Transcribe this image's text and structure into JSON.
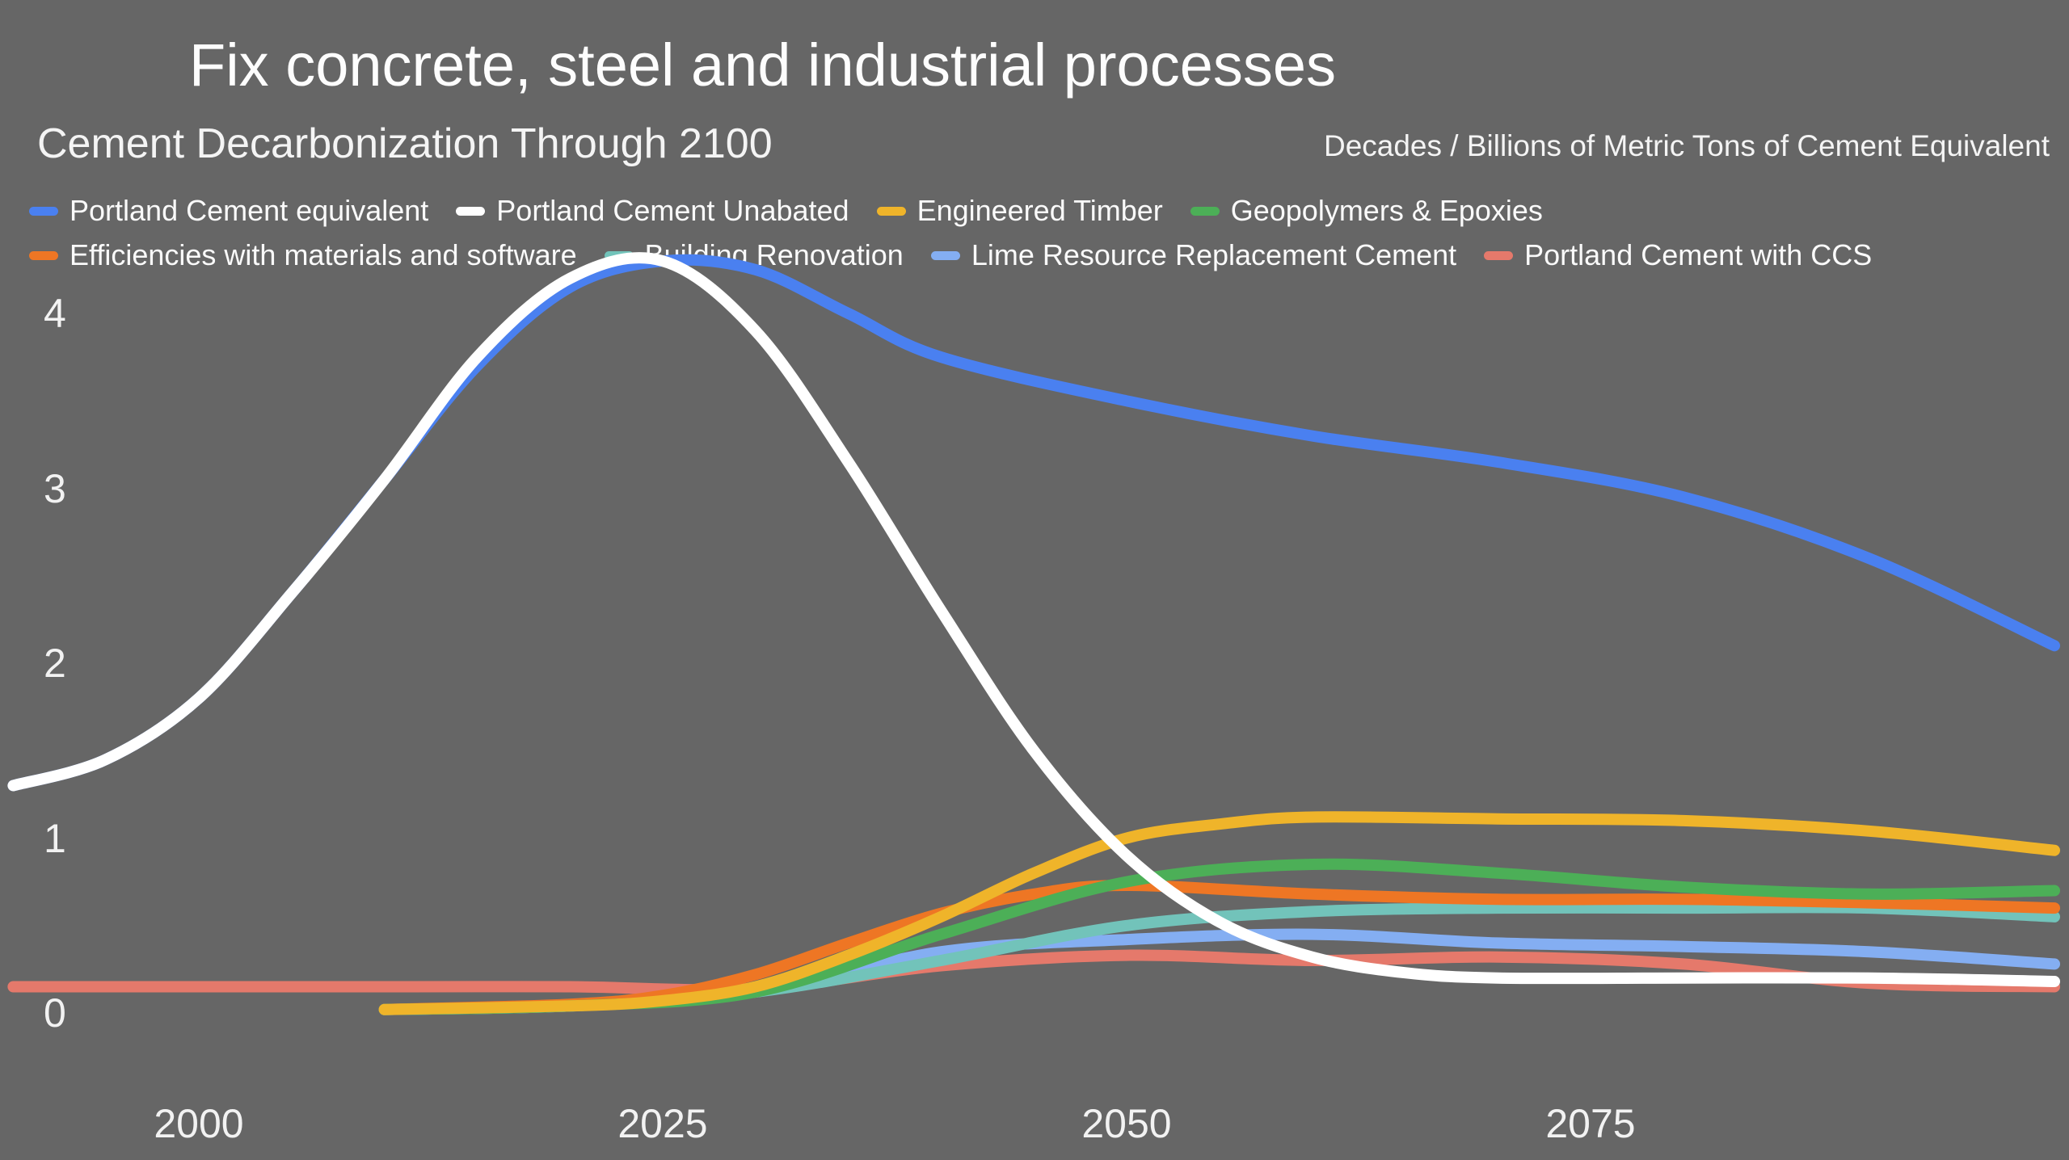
{
  "header": {
    "title": "Fix concrete, steel and industrial processes",
    "subtitle": "Cement Decarbonization Through 2100",
    "units_label": "Decades / Billions of Metric Tons of Cement Equivalent"
  },
  "colors": {
    "background": "#666666",
    "text": "#ffffff"
  },
  "chart_data": {
    "type": "line",
    "title": "Cement Decarbonization Through 2100",
    "xlabel": "Decades",
    "ylabel": "Billions of Metric Tons of Cement Equivalent",
    "x_ticks": [
      2000,
      2025,
      2050,
      2075
    ],
    "y_ticks": [
      0,
      1,
      2,
      3,
      4
    ],
    "xlim": [
      1990,
      2101
    ],
    "ylim": [
      0,
      4.45
    ],
    "grid": false,
    "legend_position": "top",
    "legend_rows": [
      4,
      4
    ],
    "series": [
      {
        "name": "Portland Cement equivalent",
        "color": "#4a80f0",
        "x": [
          1990,
          1995,
          2000,
          2005,
          2010,
          2015,
          2020,
          2025,
          2030,
          2035,
          2040,
          2050,
          2060,
          2070,
          2080,
          2090,
          2100
        ],
        "values": [
          1.3,
          1.45,
          1.8,
          2.4,
          3.05,
          3.7,
          4.15,
          4.3,
          4.25,
          4.0,
          3.75,
          3.5,
          3.3,
          3.15,
          2.95,
          2.6,
          2.1
        ]
      },
      {
        "name": "Portland Cement Unabated",
        "color": "#ffffff",
        "x": [
          1990,
          1995,
          2000,
          2005,
          2010,
          2015,
          2020,
          2025,
          2030,
          2035,
          2040,
          2045,
          2050,
          2055,
          2060,
          2065,
          2070,
          2080,
          2090,
          2100
        ],
        "values": [
          1.3,
          1.45,
          1.8,
          2.4,
          3.05,
          3.75,
          4.2,
          4.3,
          3.9,
          3.15,
          2.3,
          1.5,
          0.9,
          0.52,
          0.32,
          0.23,
          0.2,
          0.2,
          0.2,
          0.18
        ]
      },
      {
        "name": "Engineered Timber",
        "color": "#efb42a",
        "x": [
          2010,
          2020,
          2025,
          2030,
          2035,
          2040,
          2045,
          2050,
          2055,
          2060,
          2070,
          2080,
          2090,
          2100
        ],
        "values": [
          0.02,
          0.04,
          0.07,
          0.15,
          0.33,
          0.55,
          0.8,
          1.0,
          1.08,
          1.12,
          1.11,
          1.1,
          1.04,
          0.93
        ]
      },
      {
        "name": "Geopolymers & Epoxies",
        "color": "#4caf57",
        "x": [
          2010,
          2020,
          2030,
          2040,
          2050,
          2060,
          2070,
          2080,
          2090,
          2100
        ],
        "values": [
          0.02,
          0.04,
          0.12,
          0.45,
          0.75,
          0.85,
          0.8,
          0.72,
          0.68,
          0.7
        ]
      },
      {
        "name": "Efficiencies with materials and software",
        "color": "#ee7624",
        "x": [
          2010,
          2020,
          2025,
          2030,
          2035,
          2040,
          2045,
          2050,
          2060,
          2070,
          2080,
          2090,
          2100
        ],
        "values": [
          0.02,
          0.05,
          0.1,
          0.22,
          0.4,
          0.57,
          0.68,
          0.73,
          0.68,
          0.65,
          0.65,
          0.63,
          0.6
        ]
      },
      {
        "name": "Building Renovation",
        "color": "#72c3ba",
        "x": [
          2010,
          2020,
          2030,
          2040,
          2050,
          2060,
          2070,
          2080,
          2090,
          2100
        ],
        "values": [
          0.02,
          0.04,
          0.12,
          0.3,
          0.5,
          0.58,
          0.6,
          0.6,
          0.6,
          0.55
        ]
      },
      {
        "name": "Lime Resource Replacement Cement",
        "color": "#84aef2",
        "x": [
          2010,
          2020,
          2030,
          2040,
          2050,
          2060,
          2070,
          2080,
          2090,
          2100
        ],
        "values": [
          0.02,
          0.04,
          0.12,
          0.35,
          0.42,
          0.45,
          0.4,
          0.38,
          0.35,
          0.28
        ]
      },
      {
        "name": "Portland Cement with CCS",
        "color": "#e5796b",
        "x": [
          1990,
          2000,
          2010,
          2020,
          2030,
          2040,
          2050,
          2060,
          2070,
          2080,
          2090,
          2100
        ],
        "values": [
          0.15,
          0.15,
          0.15,
          0.15,
          0.14,
          0.27,
          0.33,
          0.3,
          0.32,
          0.28,
          0.17,
          0.15
        ]
      }
    ]
  }
}
